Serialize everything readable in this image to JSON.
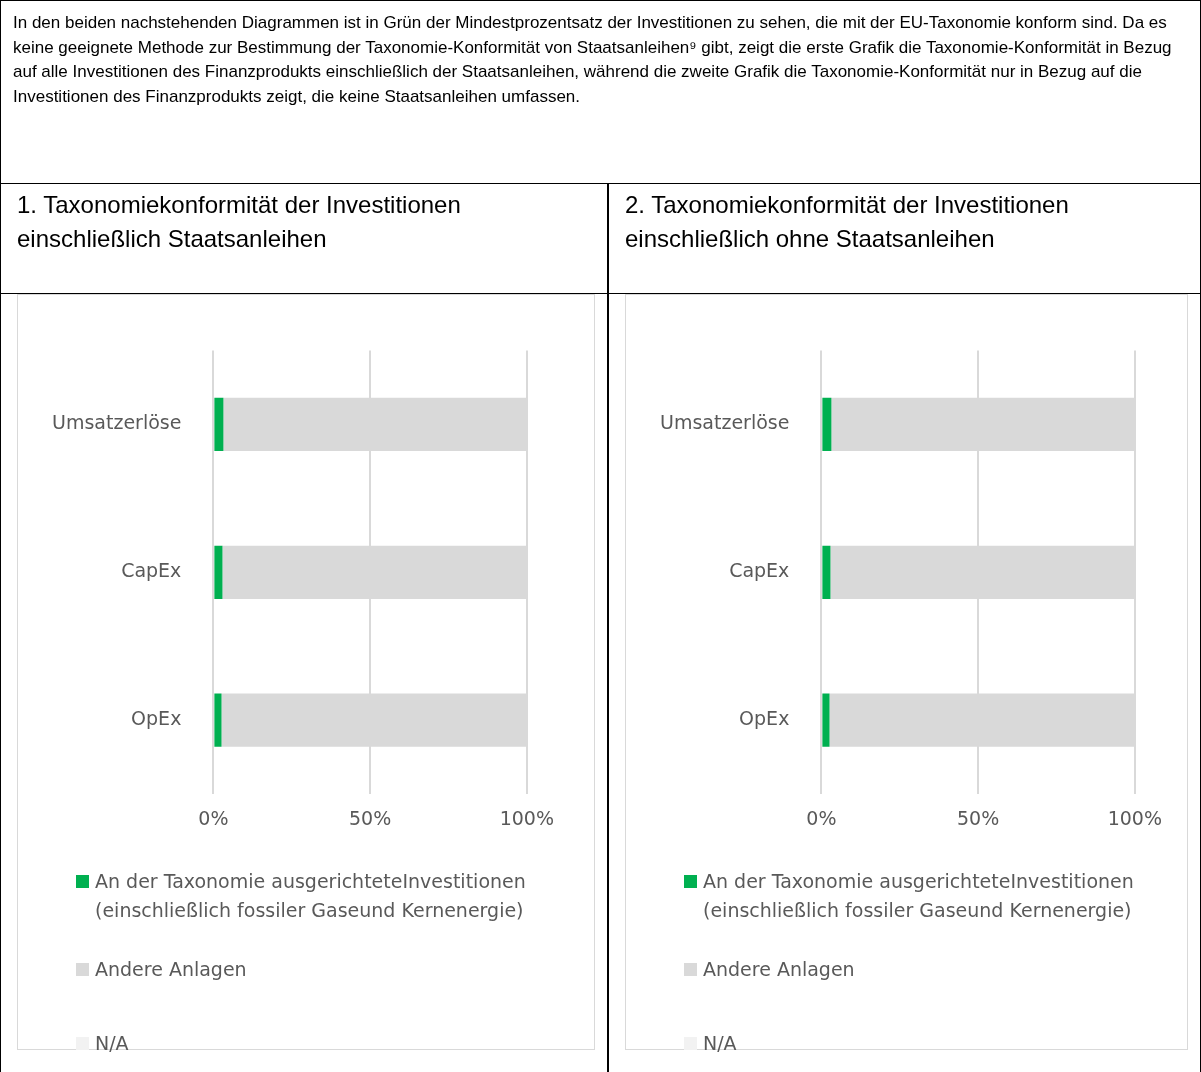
{
  "chart_data": [
    {
      "type": "bar",
      "orientation": "horizontal",
      "stacked": true,
      "title": "1. Taxonomiekonformität der Investitionen einschließlich Staatsanleihen",
      "annotations": [
        "In den beiden nachstehenden Diagrammen ist in Grün der Mindestprozentsatz der Investitionen zu sehen, die mit der EU-Taxonomie konform sind. Da es keine geeignete Methode zur Bestimmung der Taxonomie-Konformität von Staatsanleihen⁹ gibt, zeigt die erste Grafik die Taxonomie-Konformität in Bezug auf alle Investitionen des Finanzprodukts einschließlich der Staatsanleihen, während die zweite Grafik die Taxonomie-Konformität nur in Bezug auf die Investitionen des Finanzprodukts zeigt, die keine Staatsanleihen umfassen."
      ],
      "categories": [
        "Umsatzerlöse",
        "CapEx",
        "OpEx"
      ],
      "series": [
        {
          "name": "An der Taxonomie ausgerichteteInvestitionen (einschließlich fossiler Gaseund Kernenergie)",
          "color": "#00b050",
          "values": [
            3.2,
            2.9,
            2.6
          ]
        },
        {
          "name": "Andere Anlagen",
          "color": "#d9d9d9",
          "values": [
            96.8,
            97.1,
            97.4
          ]
        },
        {
          "name": "N/A",
          "color": "#f2f2f2",
          "values": [
            0,
            0,
            0
          ]
        }
      ],
      "xlim": [
        0,
        100
      ],
      "xticks": [
        {
          "value": 0,
          "label": "0%"
        },
        {
          "value": 50,
          "label": "50%"
        },
        {
          "value": 100,
          "label": "100%"
        }
      ],
      "grid": "x",
      "legend": "bottom"
    },
    {
      "type": "bar",
      "orientation": "horizontal",
      "stacked": true,
      "title": "2. Taxonomiekonformität der Investitionen einschließlich ohne Staatsanleihen",
      "categories": [
        "Umsatzerlöse",
        "CapEx",
        "OpEx"
      ],
      "series": [
        {
          "name": "An der Taxonomie ausgerichteteInvestitionen (einschließlich fossiler Gaseund Kernenergie)",
          "color": "#00b050",
          "values": [
            3.2,
            2.9,
            2.6
          ]
        },
        {
          "name": "Andere Anlagen",
          "color": "#d9d9d9",
          "values": [
            96.8,
            97.1,
            97.4
          ]
        },
        {
          "name": "N/A",
          "color": "#f2f2f2",
          "values": [
            0,
            0,
            0
          ]
        }
      ],
      "xlim": [
        0,
        100
      ],
      "xticks": [
        {
          "value": 0,
          "label": "0%"
        },
        {
          "value": 50,
          "label": "50%"
        },
        {
          "value": 100,
          "label": "100%"
        }
      ],
      "grid": "x",
      "legend": "bottom"
    }
  ]
}
